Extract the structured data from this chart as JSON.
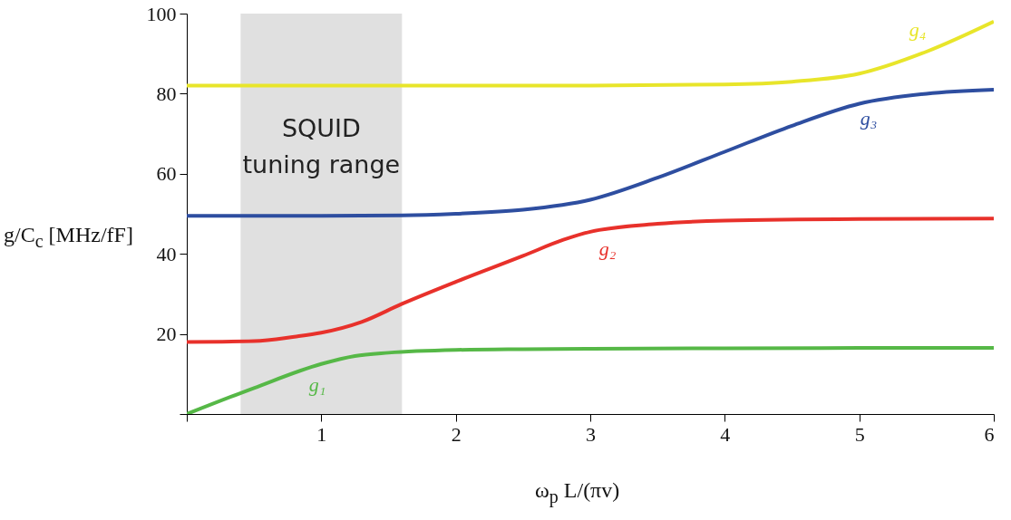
{
  "chart_data": {
    "type": "line",
    "xlabel": "ω$_{p}$ L/(πv)",
    "ylabel": "g/C$_{c}$ [MHz/fF]",
    "xlim": [
      0,
      6
    ],
    "ylim": [
      0,
      100
    ],
    "xticks": [
      {
        "value": 0,
        "label": null
      },
      1,
      2,
      3,
      4,
      5,
      6
    ],
    "yticks": [
      {
        "value": 0,
        "label": null
      },
      20,
      40,
      60,
      80,
      100
    ],
    "grid": false,
    "legend": false,
    "line_style": "solid",
    "marker": "none",
    "series": [
      {
        "name": "g₁",
        "color": "#56b847",
        "x": [
          0,
          0.5,
          1,
          1.25,
          1.5,
          2,
          2.5,
          3,
          4,
          5,
          6
        ],
        "values": [
          0,
          6.5,
          12.5,
          14.5,
          15.3,
          16,
          16.2,
          16.3,
          16.4,
          16.5,
          16.5
        ]
      },
      {
        "name": "g₂",
        "color": "#e8312b",
        "x": [
          0,
          0.5,
          0.8,
          1,
          1.3,
          1.6,
          2,
          2.5,
          2.8,
          3,
          3.5,
          4,
          5,
          6
        ],
        "values": [
          18,
          18.2,
          19.3,
          20.3,
          23,
          27.5,
          33,
          39.5,
          43.5,
          45.5,
          47.5,
          48.3,
          48.7,
          48.8
        ]
      },
      {
        "name": "g₃",
        "color": "#2e4ea0",
        "x": [
          0,
          1,
          1.6,
          2,
          2.5,
          3,
          3.5,
          4,
          4.5,
          5,
          5.5,
          6
        ],
        "values": [
          49.5,
          49.5,
          49.6,
          50,
          51,
          53.5,
          59,
          65.5,
          72,
          77.5,
          80,
          81
        ]
      },
      {
        "name": "g₄",
        "color": "#e8e52a",
        "x": [
          0,
          1,
          2,
          3,
          4,
          4.5,
          5,
          5.5,
          6
        ],
        "values": [
          82,
          82,
          82,
          82,
          82.3,
          83,
          85,
          90.5,
          98
        ]
      }
    ],
    "bands": [
      {
        "axis": "x",
        "from": 0.4,
        "to": 1.6,
        "label": "SQUID tuning range",
        "color": "#bbbbbb"
      }
    ]
  }
}
